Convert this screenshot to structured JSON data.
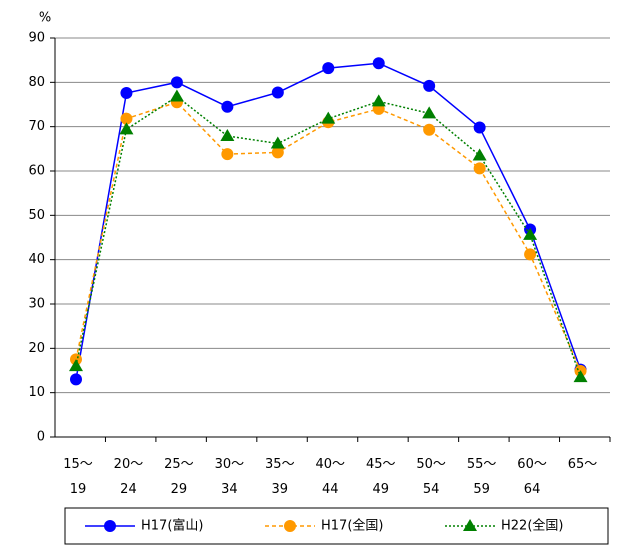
{
  "chart_data": {
    "type": "line",
    "y_label": "%",
    "categories": [
      "15～\n19",
      "20～\n24",
      "25～\n29",
      "30～\n34",
      "35～\n39",
      "40～\n44",
      "45～\n49",
      "50～\n54",
      "55～\n59",
      "60～\n64",
      "65～"
    ],
    "series": [
      {
        "name": "H17(富山)",
        "color": "#0000ff",
        "linestyle": "solid",
        "marker": "circle",
        "values": [
          13.0,
          77.6,
          80.0,
          74.5,
          77.7,
          83.2,
          84.3,
          79.2,
          69.8,
          46.8,
          15.2
        ]
      },
      {
        "name": "H17(全国)",
        "color": "#ff9900",
        "linestyle": "dashed",
        "marker": "circle",
        "values": [
          17.5,
          71.8,
          75.5,
          63.8,
          64.2,
          71.0,
          74.0,
          69.3,
          60.6,
          41.2,
          14.9
        ]
      },
      {
        "name": "H22(全国)",
        "color": "#008000",
        "linestyle": "dotted",
        "marker": "triangle",
        "values": [
          16.0,
          69.4,
          76.8,
          67.9,
          66.2,
          71.8,
          75.7,
          73.0,
          63.5,
          45.6,
          13.5
        ]
      }
    ],
    "ylim": [
      0,
      90
    ],
    "yticks": [
      0,
      10,
      20,
      30,
      40,
      50,
      60,
      70,
      80,
      90
    ],
    "grid": true,
    "legend": "bottom"
  }
}
